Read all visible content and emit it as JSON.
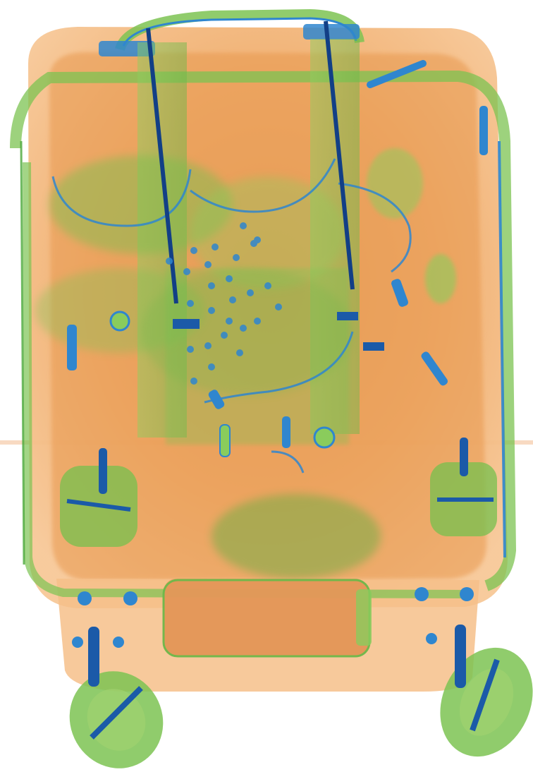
{
  "scan": {
    "palette": {
      "background": "#ffffff",
      "organic_light": "#f6c48f",
      "organic_mid": "#eea764",
      "organic_dark": "#d98a45",
      "inorganic_light": "#9fd26f",
      "inorganic_mid": "#76c04e",
      "inorganic_dark": "#4ea53a",
      "metal_light": "#3b8fd6",
      "metal_dark": "#1b5aa8",
      "metal_deep": "#123f86"
    },
    "objects": [
      "suitcase-shell",
      "telescopic-handle",
      "top-carry-handle",
      "packed-clothing",
      "zipper-pulls",
      "snap-fasteners",
      "bottom-bottle",
      "caster-wheels"
    ]
  }
}
